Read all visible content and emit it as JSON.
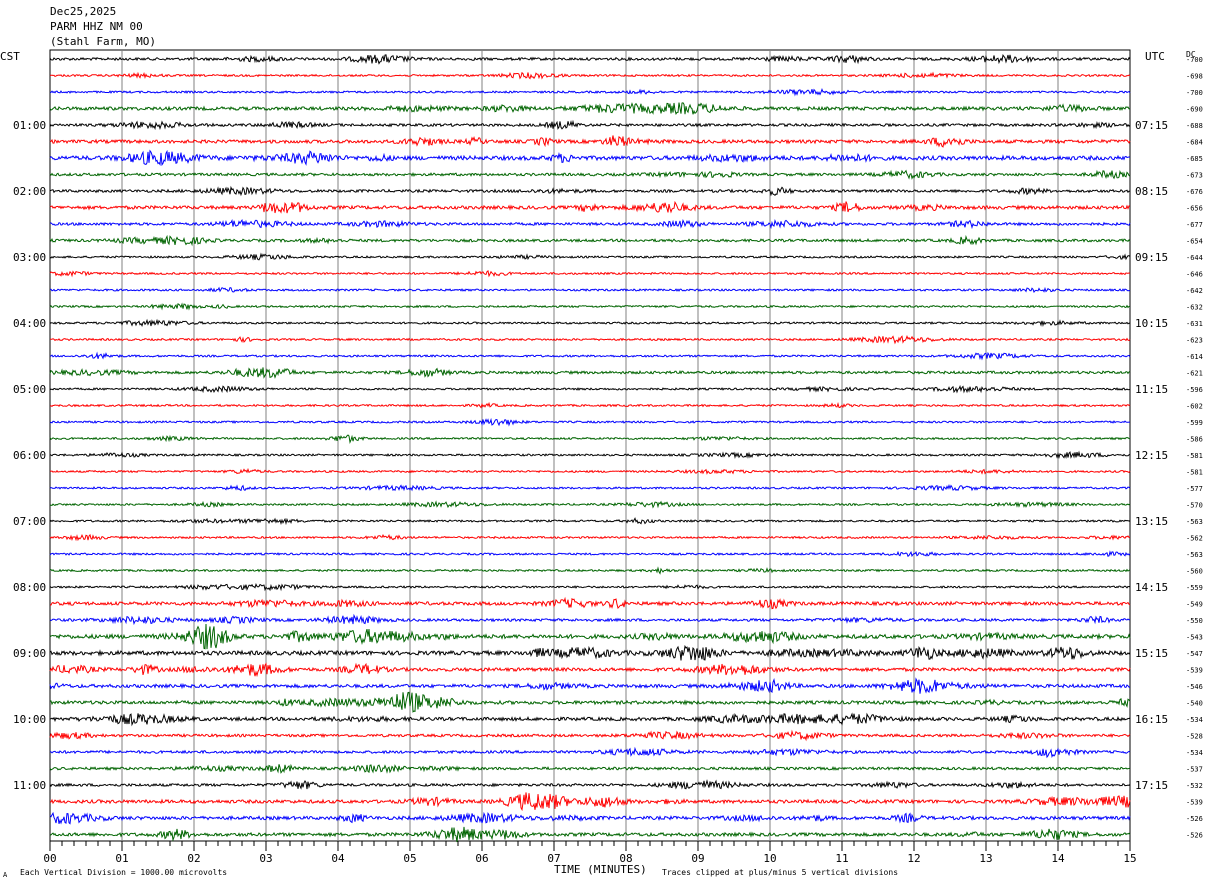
{
  "header": {
    "date": "Dec25,2025",
    "station": "PARM HHZ NM 00",
    "location": "(Stahl Farm, MO)"
  },
  "left_zone": "CST",
  "right_zone": "UTC",
  "dc_label": "DC",
  "colors": {
    "trace_cycle": [
      "#000000",
      "#ff0000",
      "#0000ff",
      "#006400"
    ],
    "grid": "#808080"
  },
  "footer": {
    "scale_note": "Each Vertical Division = 1000.00 microvolts",
    "clip_note": "Traces clipped at plus/minus 5 vertical divisions",
    "corner_mark": "A"
  },
  "chart_data": {
    "type": "line",
    "xlabel": "TIME (MINUTES)",
    "x_ticks": [
      "00",
      "01",
      "02",
      "03",
      "04",
      "05",
      "06",
      "07",
      "08",
      "09",
      "10",
      "11",
      "12",
      "13",
      "14",
      "15"
    ],
    "xlim": [
      0,
      15
    ],
    "left_hour_labels": [
      "01:00",
      "02:00",
      "03:00",
      "04:00",
      "05:00",
      "06:00",
      "07:00",
      "08:00",
      "09:00",
      "10:00",
      "11:00"
    ],
    "right_hour_labels": [
      "07:15",
      "08:15",
      "09:15",
      "10:15",
      "11:15",
      "12:15",
      "13:15",
      "14:15",
      "15:15",
      "16:15",
      "17:15"
    ],
    "dc_offsets": [
      "-700",
      "-698",
      "-700",
      "-690",
      "-688",
      "-684",
      "-685",
      "-673",
      "-676",
      "-656",
      "-677",
      "-654",
      "-644",
      "-646",
      "-642",
      "-632",
      "-631",
      "-623",
      "-614",
      "-621",
      "-596",
      "-602",
      "-599",
      "-586",
      "-581",
      "-581",
      "-577",
      "-570",
      "-563",
      "-562",
      "-563",
      "-560",
      "-559",
      "-549",
      "-550",
      "-543",
      "-547",
      "-539",
      "-546",
      "-540",
      "-534",
      "-528",
      "-534",
      "-537",
      "-532",
      "-539",
      "-526",
      "-526"
    ],
    "trace_activity": [
      2,
      1,
      1,
      3,
      2,
      3,
      4,
      2,
      2,
      3,
      2,
      2,
      1,
      1,
      1,
      1,
      1,
      1,
      1,
      2,
      1,
      1,
      1,
      1,
      1,
      1,
      1,
      1,
      1,
      1,
      1,
      1,
      1,
      3,
      2,
      4,
      4,
      3,
      3,
      3,
      3,
      2,
      2,
      2,
      2,
      3,
      3,
      3
    ]
  }
}
